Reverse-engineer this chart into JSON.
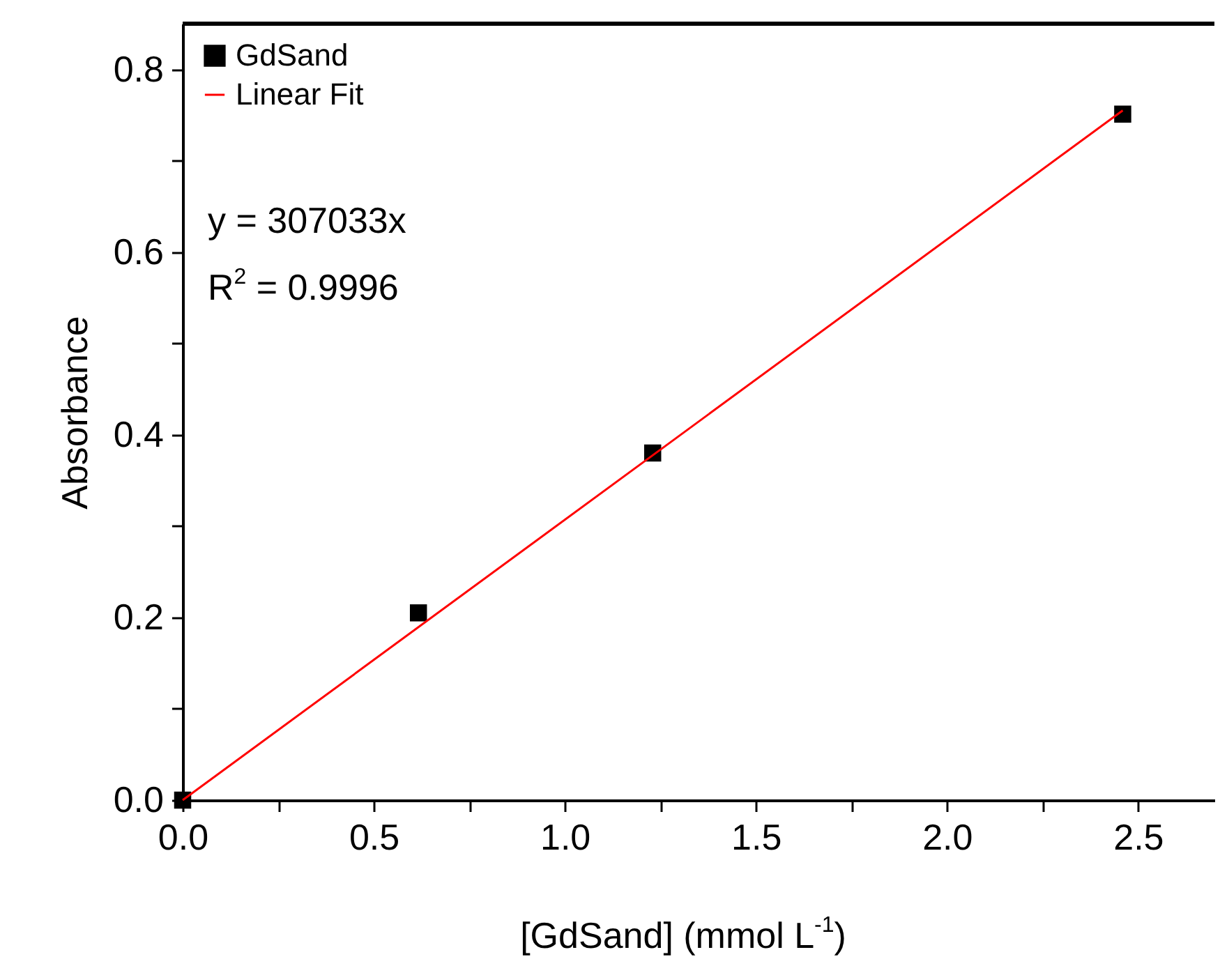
{
  "chart_data": {
    "type": "scatter",
    "xlabel": "[GdSand] (mmol L$^{-1}$)",
    "ylabel": "Absorbance",
    "annotations": [
      "y = 307033x",
      "R$^{2}$ = 0.9996"
    ],
    "series": [
      {
        "name": "GdSand",
        "marker": "square",
        "color": "#000000",
        "x": [
          0,
          0.617,
          1.23,
          2.46
        ],
        "values": [
          0,
          0.205,
          0.38,
          0.751
        ]
      },
      {
        "name": "Linear Fit",
        "type": "line",
        "color": "#ff0000",
        "x": [
          0,
          2.46
        ],
        "values": [
          0,
          0.755
        ]
      }
    ],
    "legend": "top left",
    "grid": false,
    "xlim": [
      0,
      2.7
    ],
    "ylim": [
      0,
      0.85
    ],
    "xticks": [
      {
        "value": 0,
        "label": "0.0"
      },
      {
        "value": 0.25,
        "label": null
      },
      {
        "value": 0.5,
        "label": "0.5"
      },
      {
        "value": 0.75,
        "label": null
      },
      {
        "value": 1,
        "label": "1.0"
      },
      {
        "value": 1.25,
        "label": null
      },
      {
        "value": 1.5,
        "label": "1.5"
      },
      {
        "value": 1.75,
        "label": null
      },
      {
        "value": 2,
        "label": "2.0"
      },
      {
        "value": 2.25,
        "label": null
      },
      {
        "value": 2.5,
        "label": "2.5"
      }
    ],
    "yticks": [
      {
        "value": 0,
        "label": "0.0"
      },
      {
        "value": 0.1,
        "label": null
      },
      {
        "value": 0.2,
        "label": "0.2"
      },
      {
        "value": 0.3,
        "label": null
      },
      {
        "value": 0.4,
        "label": "0.4"
      },
      {
        "value": 0.5,
        "label": null
      },
      {
        "value": 0.6,
        "label": "0.6"
      },
      {
        "value": 0.7,
        "label": null
      },
      {
        "value": 0.8,
        "label": "0.8"
      }
    ]
  }
}
